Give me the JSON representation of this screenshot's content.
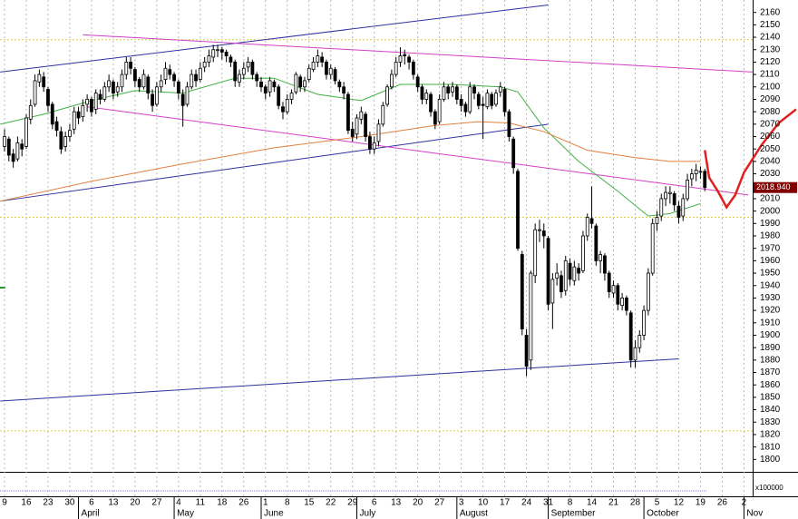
{
  "chart_data": {
    "type": "candlestick",
    "up_color": "#ffffff",
    "down_color": "#000000",
    "xlim": [
      -1,
      172
    ],
    "ylim": [
      1790,
      2170
    ],
    "yticks": [
      1800,
      1810,
      1820,
      1830,
      1840,
      1850,
      1860,
      1870,
      1880,
      1890,
      1900,
      1910,
      1920,
      1930,
      1940,
      1950,
      1960,
      1970,
      1980,
      1990,
      2000,
      2010,
      2020,
      2030,
      2040,
      2050,
      2060,
      2070,
      2080,
      2090,
      2100,
      2110,
      2120,
      2130,
      2140,
      2150,
      2160
    ],
    "xticks": [
      {
        "value": 0,
        "label": "9"
      },
      {
        "value": 5,
        "label": "16"
      },
      {
        "value": 10,
        "label": "23"
      },
      {
        "value": 15,
        "label": "30"
      },
      {
        "value": 20,
        "label": "6"
      },
      {
        "value": 25,
        "label": "13"
      },
      {
        "value": 30,
        "label": "20"
      },
      {
        "value": 35,
        "label": "27"
      },
      {
        "value": 40,
        "label": "4"
      },
      {
        "value": 45,
        "label": "11"
      },
      {
        "value": 50,
        "label": "18"
      },
      {
        "value": 55,
        "label": "26"
      },
      {
        "value": 60,
        "label": "1"
      },
      {
        "value": 65,
        "label": "8"
      },
      {
        "value": 70,
        "label": "15"
      },
      {
        "value": 75,
        "label": "22"
      },
      {
        "value": 80,
        "label": "29"
      },
      {
        "value": 85,
        "label": "6"
      },
      {
        "value": 90,
        "label": "13"
      },
      {
        "value": 95,
        "label": "20"
      },
      {
        "value": 100,
        "label": "27"
      },
      {
        "value": 105,
        "label": "3"
      },
      {
        "value": 110,
        "label": "10"
      },
      {
        "value": 115,
        "label": "17"
      },
      {
        "value": 120,
        "label": "24"
      },
      {
        "value": 125,
        "label": "31"
      },
      {
        "value": 130,
        "label": "8"
      },
      {
        "value": 135,
        "label": "14"
      },
      {
        "value": 140,
        "label": "21"
      },
      {
        "value": 145,
        "label": "28"
      },
      {
        "value": 150,
        "label": "5"
      },
      {
        "value": 155,
        "label": "12"
      },
      {
        "value": 160,
        "label": "19"
      },
      {
        "value": 165,
        "label": "26"
      },
      {
        "value": 170,
        "label": "2"
      }
    ],
    "month_labels": [
      {
        "value": 17,
        "label": "April"
      },
      {
        "value": 39,
        "label": "May"
      },
      {
        "value": 59,
        "label": "June"
      },
      {
        "value": 81,
        "label": "July"
      },
      {
        "value": 104,
        "label": "August"
      },
      {
        "value": 125,
        "label": "September"
      },
      {
        "value": 147,
        "label": "October"
      },
      {
        "value": 170,
        "label": "Nov"
      }
    ],
    "ohlc": [
      [
        2052,
        2066,
        2048,
        2060
      ],
      [
        2058,
        2060,
        2040,
        2045
      ],
      [
        2046,
        2050,
        2035,
        2040
      ],
      [
        2042,
        2060,
        2040,
        2055
      ],
      [
        2054,
        2058,
        2044,
        2050
      ],
      [
        2052,
        2078,
        2050,
        2075
      ],
      [
        2074,
        2090,
        2070,
        2085
      ],
      [
        2086,
        2110,
        2084,
        2105
      ],
      [
        2104,
        2114,
        2100,
        2110
      ],
      [
        2108,
        2112,
        2096,
        2100
      ],
      [
        2098,
        2100,
        2080,
        2085
      ],
      [
        2086,
        2088,
        2066,
        2070
      ],
      [
        2072,
        2076,
        2060,
        2065
      ],
      [
        2064,
        2068,
        2046,
        2050
      ],
      [
        2052,
        2064,
        2048,
        2060
      ],
      [
        2060,
        2070,
        2056,
        2065
      ],
      [
        2066,
        2084,
        2062,
        2080
      ],
      [
        2080,
        2084,
        2070,
        2075
      ],
      [
        2076,
        2090,
        2072,
        2085
      ],
      [
        2086,
        2094,
        2080,
        2090
      ],
      [
        2090,
        2092,
        2076,
        2080
      ],
      [
        2082,
        2098,
        2078,
        2095
      ],
      [
        2094,
        2098,
        2086,
        2090
      ],
      [
        2090,
        2104,
        2088,
        2100
      ],
      [
        2100,
        2110,
        2096,
        2105
      ],
      [
        2104,
        2106,
        2090,
        2095
      ],
      [
        2096,
        2104,
        2092,
        2100
      ],
      [
        2100,
        2114,
        2096,
        2110
      ],
      [
        2110,
        2124,
        2106,
        2120
      ],
      [
        2120,
        2124,
        2110,
        2115
      ],
      [
        2114,
        2116,
        2100,
        2105
      ],
      [
        2106,
        2108,
        2096,
        2100
      ],
      [
        2100,
        2114,
        2098,
        2110
      ],
      [
        2108,
        2110,
        2090,
        2095
      ],
      [
        2094,
        2098,
        2080,
        2085
      ],
      [
        2086,
        2104,
        2084,
        2100
      ],
      [
        2100,
        2110,
        2096,
        2105
      ],
      [
        2106,
        2120,
        2102,
        2115
      ],
      [
        2114,
        2118,
        2106,
        2110
      ],
      [
        2110,
        2112,
        2100,
        2105
      ],
      [
        2104,
        2106,
        2090,
        2095
      ],
      [
        2094,
        2098,
        2068,
        2085
      ],
      [
        2086,
        2104,
        2084,
        2100
      ],
      [
        2100,
        2114,
        2098,
        2110
      ],
      [
        2110,
        2114,
        2100,
        2105
      ],
      [
        2106,
        2120,
        2104,
        2115
      ],
      [
        2116,
        2124,
        2112,
        2120
      ],
      [
        2120,
        2130,
        2116,
        2125
      ],
      [
        2124,
        2134,
        2120,
        2130
      ],
      [
        2130,
        2134,
        2124,
        2130
      ],
      [
        2130,
        2132,
        2122,
        2128
      ],
      [
        2128,
        2130,
        2120,
        2125
      ],
      [
        2124,
        2126,
        2116,
        2120
      ],
      [
        2120,
        2122,
        2100,
        2105
      ],
      [
        2104,
        2114,
        2100,
        2110
      ],
      [
        2110,
        2120,
        2106,
        2115
      ],
      [
        2116,
        2124,
        2112,
        2120
      ],
      [
        2120,
        2122,
        2106,
        2110
      ],
      [
        2110,
        2112,
        2100,
        2105
      ],
      [
        2104,
        2108,
        2096,
        2100
      ],
      [
        2100,
        2102,
        2090,
        2095
      ],
      [
        2096,
        2108,
        2092,
        2105
      ],
      [
        2104,
        2106,
        2096,
        2100
      ],
      [
        2100,
        2102,
        2082,
        2085
      ],
      [
        2084,
        2088,
        2074,
        2080
      ],
      [
        2080,
        2094,
        2078,
        2090
      ],
      [
        2090,
        2098,
        2086,
        2095
      ],
      [
        2096,
        2112,
        2094,
        2110
      ],
      [
        2108,
        2110,
        2096,
        2100
      ],
      [
        2100,
        2108,
        2096,
        2105
      ],
      [
        2106,
        2118,
        2104,
        2115
      ],
      [
        2114,
        2124,
        2112,
        2120
      ],
      [
        2120,
        2130,
        2116,
        2125
      ],
      [
        2124,
        2128,
        2116,
        2120
      ],
      [
        2120,
        2122,
        2106,
        2110
      ],
      [
        2110,
        2118,
        2106,
        2115
      ],
      [
        2114,
        2116,
        2102,
        2105
      ],
      [
        2104,
        2106,
        2096,
        2100
      ],
      [
        2100,
        2104,
        2090,
        2095
      ],
      [
        2094,
        2096,
        2062,
        2065
      ],
      [
        2066,
        2072,
        2056,
        2060
      ],
      [
        2062,
        2078,
        2058,
        2075
      ],
      [
        2074,
        2084,
        2070,
        2080
      ],
      [
        2078,
        2080,
        2056,
        2060
      ],
      [
        2060,
        2064,
        2046,
        2050
      ],
      [
        2050,
        2060,
        2046,
        2055
      ],
      [
        2056,
        2074,
        2052,
        2070
      ],
      [
        2070,
        2088,
        2068,
        2085
      ],
      [
        2086,
        2102,
        2084,
        2100
      ],
      [
        2100,
        2114,
        2098,
        2110
      ],
      [
        2110,
        2124,
        2108,
        2120
      ],
      [
        2120,
        2132,
        2116,
        2125
      ],
      [
        2126,
        2130,
        2118,
        2125
      ],
      [
        2124,
        2126,
        2114,
        2120
      ],
      [
        2120,
        2122,
        2106,
        2110
      ],
      [
        2108,
        2110,
        2096,
        2100
      ],
      [
        2100,
        2102,
        2086,
        2090
      ],
      [
        2090,
        2098,
        2086,
        2095
      ],
      [
        2094,
        2096,
        2076,
        2080
      ],
      [
        2080,
        2082,
        2066,
        2070
      ],
      [
        2072,
        2094,
        2070,
        2090
      ],
      [
        2090,
        2104,
        2088,
        2100
      ],
      [
        2100,
        2102,
        2090,
        2095
      ],
      [
        2096,
        2104,
        2092,
        2100
      ],
      [
        2100,
        2102,
        2086,
        2090
      ],
      [
        2090,
        2094,
        2080,
        2085
      ],
      [
        2086,
        2088,
        2076,
        2080
      ],
      [
        2080,
        2104,
        2078,
        2100
      ],
      [
        2100,
        2102,
        2090,
        2095
      ],
      [
        2094,
        2096,
        2082,
        2085
      ],
      [
        2086,
        2092,
        2058,
        2085
      ],
      [
        2084,
        2098,
        2082,
        2095
      ],
      [
        2094,
        2096,
        2082,
        2085
      ],
      [
        2086,
        2098,
        2084,
        2095
      ],
      [
        2096,
        2104,
        2092,
        2100
      ],
      [
        2098,
        2100,
        2076,
        2080
      ],
      [
        2080,
        2082,
        2056,
        2060
      ],
      [
        2058,
        2060,
        2030,
        2035
      ],
      [
        2032,
        2034,
        1968,
        1970
      ],
      [
        1965,
        1968,
        1900,
        1905
      ],
      [
        1900,
        1905,
        1867,
        1875
      ],
      [
        1880,
        1952,
        1872,
        1950
      ],
      [
        1948,
        1990,
        1942,
        1985
      ],
      [
        1985,
        1993,
        1975,
        1985
      ],
      [
        1984,
        1990,
        1970,
        1980
      ],
      [
        1978,
        1980,
        1920,
        1925
      ],
      [
        1926,
        1950,
        1905,
        1945
      ],
      [
        1946,
        1958,
        1940,
        1950
      ],
      [
        1948,
        1952,
        1930,
        1935
      ],
      [
        1936,
        1964,
        1932,
        1960
      ],
      [
        1958,
        1962,
        1940,
        1945
      ],
      [
        1944,
        1960,
        1940,
        1955
      ],
      [
        1954,
        1958,
        1944,
        1950
      ],
      [
        1952,
        1984,
        1950,
        1980
      ],
      [
        1980,
        1998,
        1976,
        1995
      ],
      [
        1994,
        2020,
        1986,
        1990
      ],
      [
        1988,
        1990,
        1956,
        1960
      ],
      [
        1960,
        1968,
        1950,
        1965
      ],
      [
        1964,
        1966,
        1944,
        1950
      ],
      [
        1950,
        1952,
        1930,
        1935
      ],
      [
        1934,
        1944,
        1930,
        1940
      ],
      [
        1940,
        1942,
        1920,
        1925
      ],
      [
        1924,
        1934,
        1920,
        1930
      ],
      [
        1930,
        1932,
        1916,
        1920
      ],
      [
        1918,
        1920,
        1874,
        1880
      ],
      [
        1880,
        1896,
        1874,
        1890
      ],
      [
        1890,
        1904,
        1886,
        1900
      ],
      [
        1900,
        1924,
        1896,
        1920
      ],
      [
        1920,
        1954,
        1916,
        1950
      ],
      [
        1950,
        1994,
        1948,
        1990
      ],
      [
        1990,
        2000,
        1984,
        1995
      ],
      [
        1996,
        2014,
        1992,
        2010
      ],
      [
        2010,
        2020,
        2004,
        2015
      ],
      [
        2014,
        2020,
        2006,
        2015
      ],
      [
        2014,
        2016,
        2000,
        2005
      ],
      [
        2004,
        2008,
        1990,
        1995
      ],
      [
        1996,
        2014,
        1992,
        2010
      ],
      [
        2010,
        2030,
        2008,
        2025
      ],
      [
        2026,
        2034,
        2020,
        2030
      ],
      [
        2030,
        2038,
        2024,
        2033
      ],
      [
        2032,
        2036,
        2026,
        2032
      ],
      [
        2032,
        2034,
        2016,
        2018.94
      ]
    ],
    "overlays": [
      {
        "color": "#3030a0",
        "x": [
          -1,
          125
        ],
        "values": [
          2112,
          2166
        ]
      },
      {
        "color": "#3030a0",
        "x": [
          -1,
          125
        ],
        "values": [
          2008,
          2070
        ]
      },
      {
        "color": "#3030a0",
        "x": [
          -1,
          155
        ],
        "values": [
          1847,
          1881
        ]
      },
      {
        "color": "#d040c8",
        "x": [
          18,
          172
        ],
        "values": [
          2142,
          2112
        ]
      },
      {
        "color": "#d040c8",
        "x": [
          19,
          171
        ],
        "values": [
          2084,
          2013
        ]
      },
      {
        "color": "#40b040",
        "x": [
          -1,
          9,
          20,
          30,
          41,
          53,
          62,
          72,
          82,
          91,
          103,
          114,
          118,
          124,
          132,
          141,
          148,
          153,
          160
        ],
        "values": [
          2070,
          2078,
          2089,
          2097,
          2095,
          2107,
          2107,
          2094,
          2089,
          2102,
          2102,
          2100,
          2096,
          2067,
          2040,
          2016,
          1996,
          1998,
          2006
        ]
      },
      {
        "color": "#e08040",
        "x": [
          -1,
          20,
          41,
          62,
          82,
          99,
          109,
          116,
          124,
          134,
          145,
          153,
          160
        ],
        "values": [
          2008,
          2024,
          2038,
          2051,
          2060,
          2069,
          2072,
          2071,
          2064,
          2049,
          2043,
          2040,
          2040
        ]
      },
      {
        "color": "#e02020",
        "x": [
          161,
          162,
          164,
          166,
          168,
          170,
          174,
          178,
          182
        ],
        "values": [
          2049,
          2027,
          2016,
          2003,
          2013,
          2031,
          2053,
          2071,
          2082
        ]
      }
    ],
    "hlines": [
      {
        "value": 2138,
        "color": "#d8d040"
      },
      {
        "value": 1995,
        "color": "#d8d040"
      },
      {
        "value": 1823,
        "color": "#d8d040"
      }
    ],
    "last_value_label": {
      "value": 2018.94,
      "label": "2018.940"
    },
    "volume_label": "x100000"
  }
}
